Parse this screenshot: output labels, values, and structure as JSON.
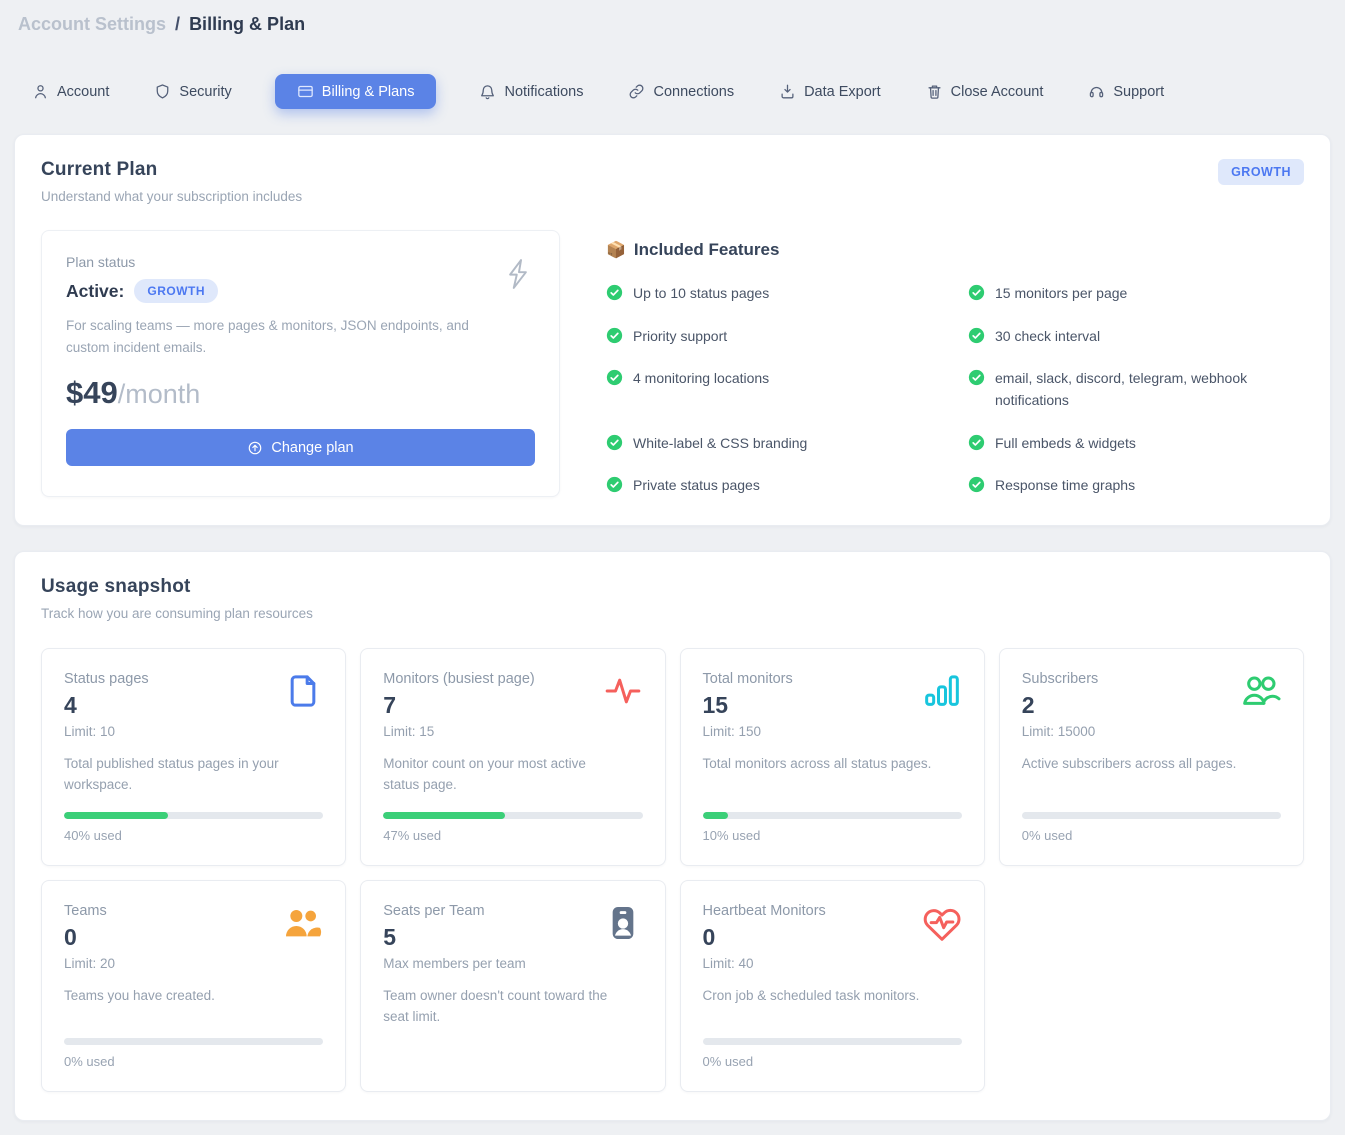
{
  "breadcrumb": {
    "section": "Account Settings",
    "separator": "/",
    "page": "Billing & Plan"
  },
  "tabs": [
    {
      "label": "Account",
      "icon": "person",
      "active": false
    },
    {
      "label": "Security",
      "icon": "shield",
      "active": false
    },
    {
      "label": "Billing & Plans",
      "icon": "credit-card",
      "active": true
    },
    {
      "label": "Notifications",
      "icon": "bell",
      "active": false
    },
    {
      "label": "Connections",
      "icon": "link",
      "active": false
    },
    {
      "label": "Data Export",
      "icon": "download",
      "active": false
    },
    {
      "label": "Close Account",
      "icon": "trash",
      "active": false
    },
    {
      "label": "Support",
      "icon": "headset",
      "active": false
    }
  ],
  "current_plan": {
    "title": "Current Plan",
    "subtitle": "Understand what your subscription includes",
    "plan_badge": "GROWTH",
    "status_label": "Plan status",
    "status_value": "Active:",
    "status_badge": "GROWTH",
    "description": "For scaling teams — more pages & monitors, JSON endpoints, and custom incident emails.",
    "price": "$49",
    "price_period": "/month",
    "change_plan_label": "Change plan",
    "change_plan_icon": "arrow-up-circle",
    "corner_icon": "lightning-bolt",
    "features_title": "Included Features",
    "features_emoji": "📦",
    "feature_check_icon": "check-circle",
    "features": [
      "Up to 10 status pages",
      "15 monitors per page",
      "Priority support",
      "30 check interval",
      "4 monitoring locations",
      "email, slack, discord, telegram, webhook notifications",
      "White-label & CSS branding",
      "Full embeds & widgets",
      "Private status pages",
      "Response time graphs"
    ]
  },
  "usage": {
    "title": "Usage snapshot",
    "subtitle": "Track how you are consuming plan resources",
    "cards": [
      {
        "label": "Status pages",
        "value": "4",
        "sub": "Limit: 10",
        "description": "Total published status pages in your workspace.",
        "percent": 40,
        "percent_label": "40% used",
        "icon": "document",
        "icon_color": "#4b7bea"
      },
      {
        "label": "Monitors (busiest page)",
        "value": "7",
        "sub": "Limit: 15",
        "description": "Monitor count on your most active status page.",
        "percent": 47,
        "percent_label": "47% used",
        "icon": "activity-pulse",
        "icon_color": "#f5605c"
      },
      {
        "label": "Total monitors",
        "value": "15",
        "sub": "Limit: 150",
        "description": "Total monitors across all status pages.",
        "percent": 10,
        "percent_label": "10% used",
        "icon": "bar-chart",
        "icon_color": "#18c5dd"
      },
      {
        "label": "Subscribers",
        "value": "2",
        "sub": "Limit: 15000",
        "description": "Active subscribers across all pages.",
        "percent": 0,
        "percent_label": "0% used",
        "icon": "users-outline",
        "icon_color": "#2ecc71"
      },
      {
        "label": "Teams",
        "value": "0",
        "sub": "Limit: 20",
        "description": "Teams you have created.",
        "percent": 0,
        "percent_label": "0% used",
        "icon": "users-filled",
        "icon_color": "#f5a43c"
      },
      {
        "label": "Seats per Team",
        "value": "5",
        "sub": "Max members per team",
        "description": "Team owner doesn't count toward the seat limit.",
        "percent": null,
        "percent_label": null,
        "icon": "id-badge",
        "icon_color": "#64748b"
      },
      {
        "label": "Heartbeat Monitors",
        "value": "0",
        "sub": "Limit: 40",
        "description": "Cron job & scheduled task monitors.",
        "percent": 0,
        "percent_label": "0% used",
        "icon": "heart-pulse",
        "icon_color": "#f5605c"
      }
    ]
  },
  "colors": {
    "accent_blue": "#5b83e6",
    "badge_bg": "#dfe8fb",
    "badge_text": "#4c78f1",
    "progress_green": "#3bcf78",
    "progress_track": "#e4e8ed",
    "page_bg": "#eef0f3",
    "heading_text": "#36445a",
    "muted_text": "#9aa5b4"
  }
}
